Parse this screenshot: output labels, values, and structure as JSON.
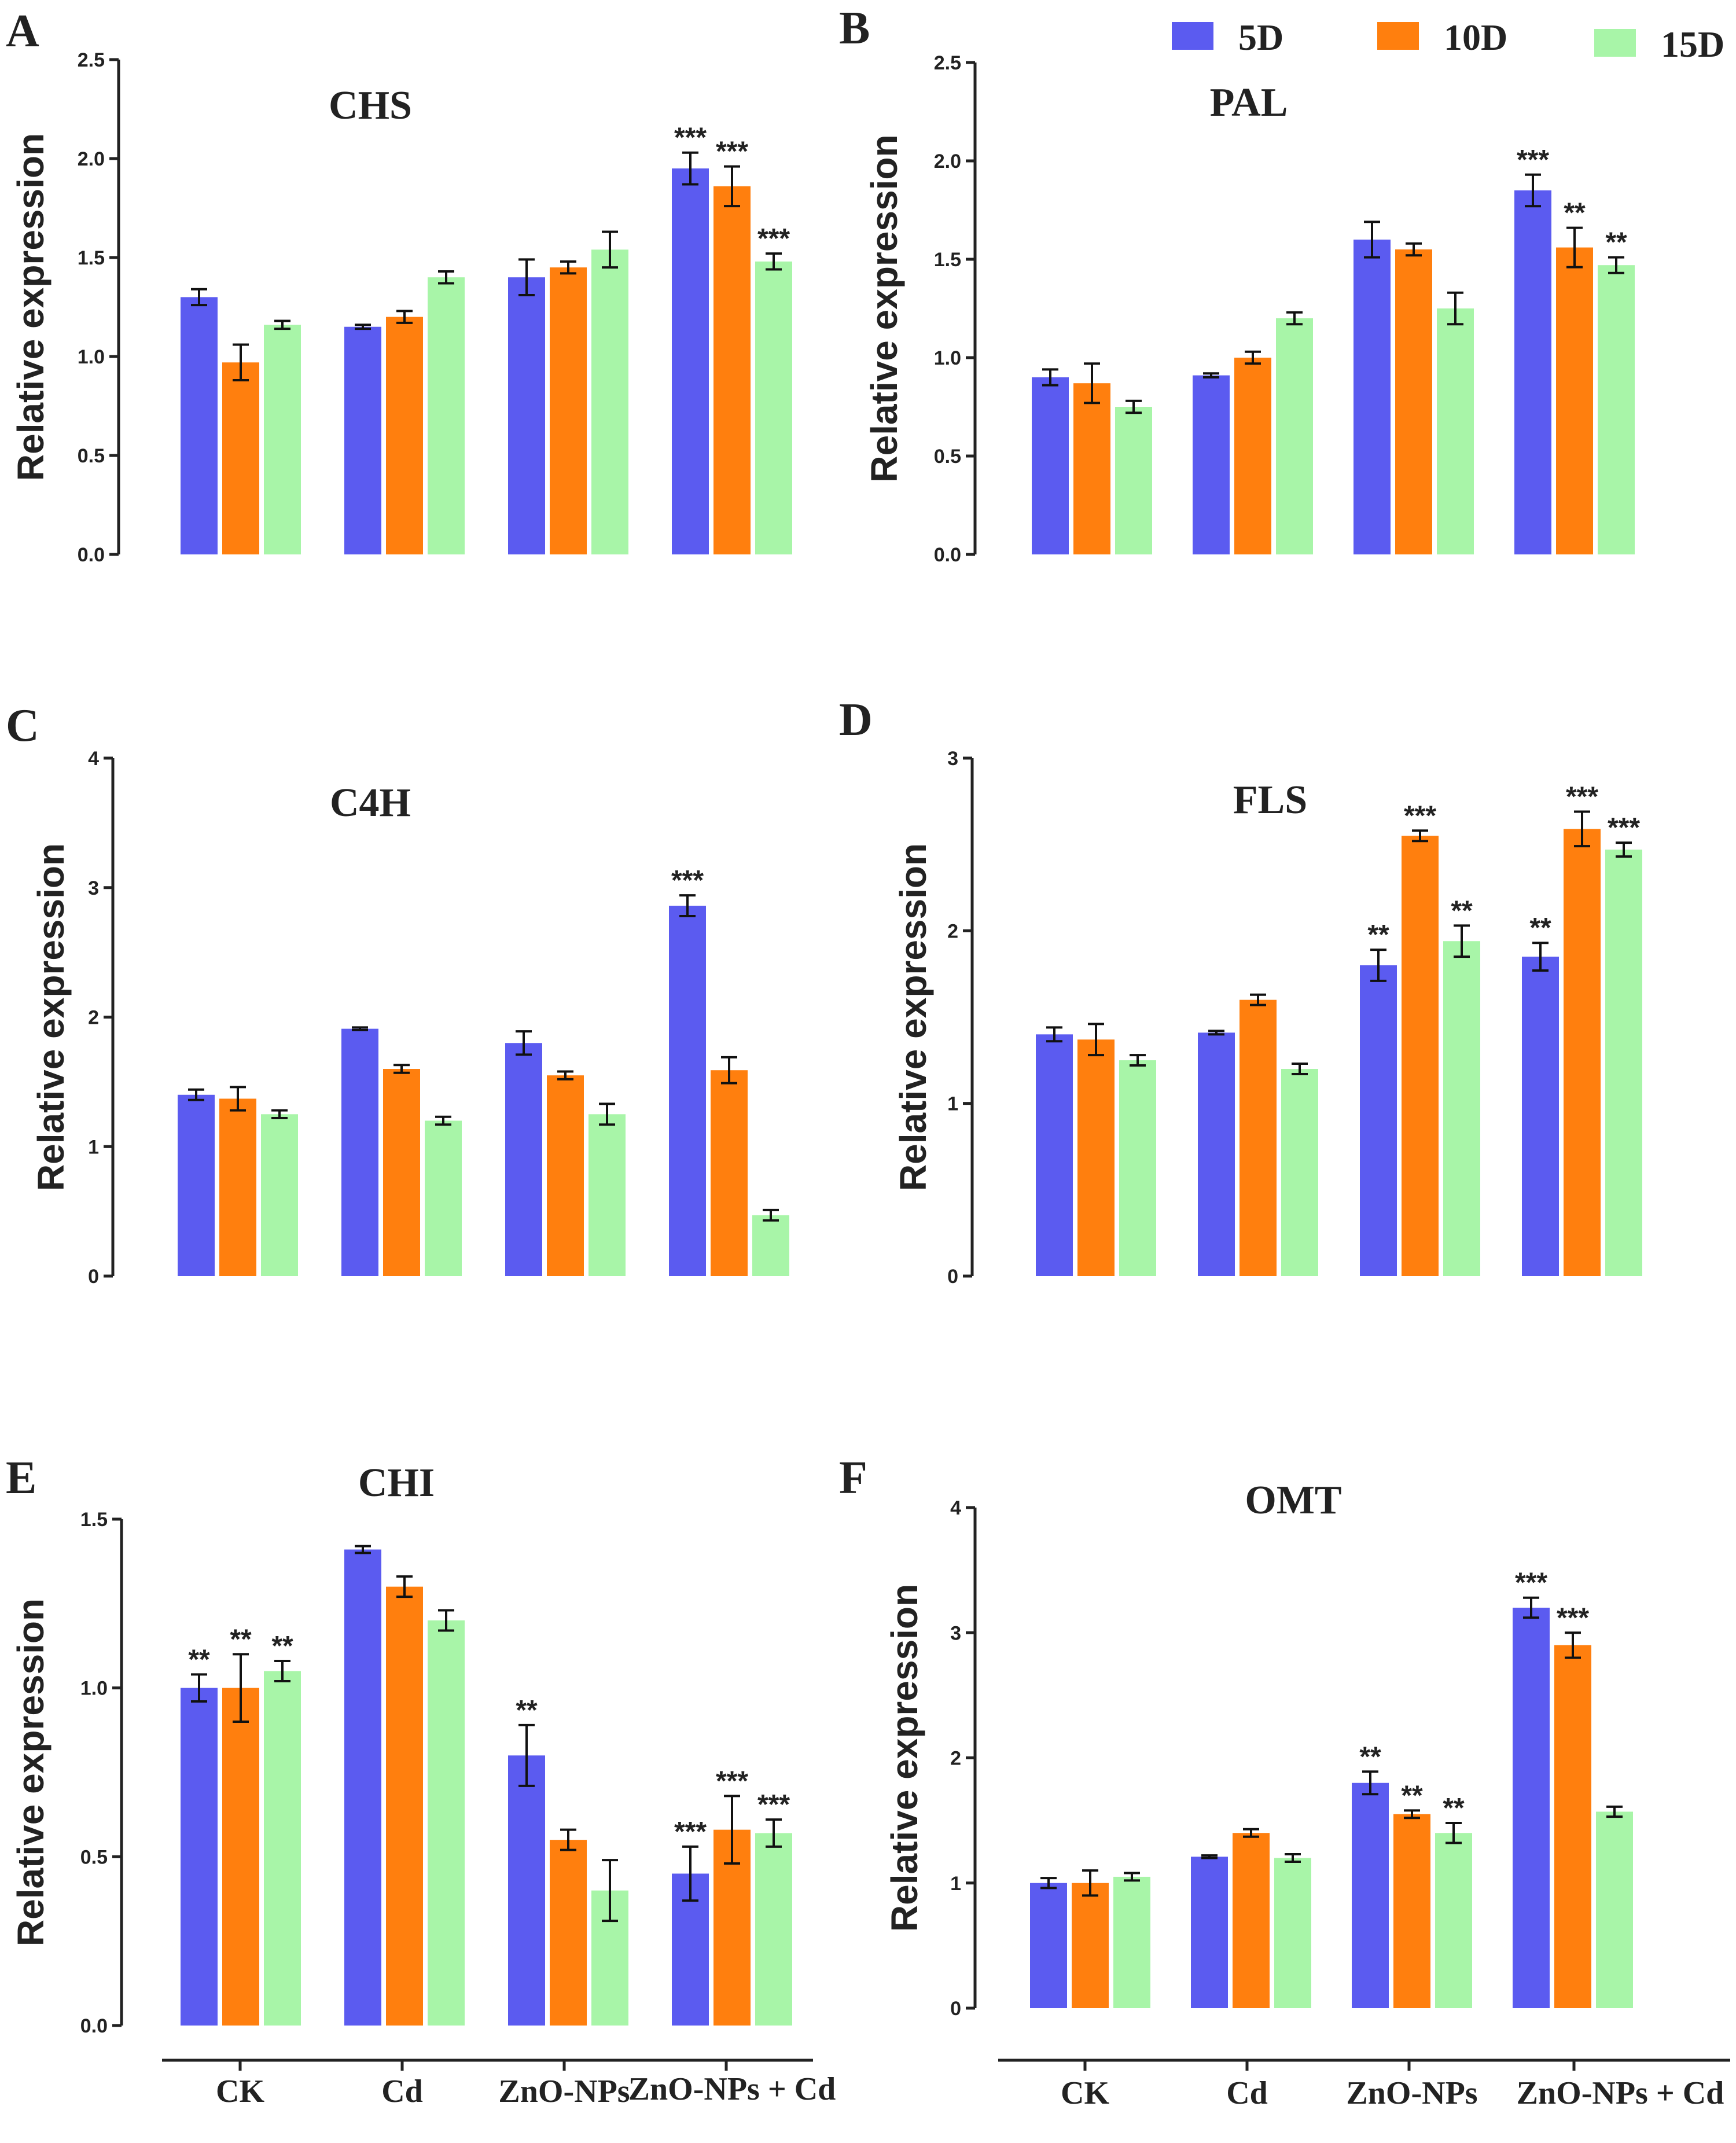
{
  "legend": [
    {
      "label": "5D",
      "color": "#5b5bf0"
    },
    {
      "label": "10D",
      "color": "#ff7f0e"
    },
    {
      "label": "15D",
      "color": "#a8f5a8"
    }
  ],
  "categories": [
    "CK",
    "Cd",
    "ZnO-NPs",
    "ZnO-NPs + Cd"
  ],
  "ylabel": "Relative expression",
  "chart_data": [
    {
      "type": "bar",
      "panel": "A",
      "title": "CHS",
      "ylabel": "Relative expression",
      "ylim": [
        0,
        2.5
      ],
      "yticks": [
        "0.0",
        "0.5",
        "1.0",
        "1.5",
        "2.0",
        "2.5"
      ],
      "categories": [
        "CK",
        "Cd",
        "ZnO-NPs",
        "ZnO-NPs + Cd"
      ],
      "series": [
        {
          "name": "5D",
          "values": [
            1.3,
            1.15,
            1.4,
            1.95
          ],
          "errors": [
            0.04,
            0.01,
            0.09,
            0.08
          ],
          "stars": [
            "",
            "",
            "",
            "***"
          ]
        },
        {
          "name": "10D",
          "values": [
            0.97,
            1.2,
            1.45,
            1.86
          ],
          "errors": [
            0.09,
            0.03,
            0.03,
            0.1
          ],
          "stars": [
            "",
            "",
            "",
            "***"
          ]
        },
        {
          "name": "15D",
          "values": [
            1.16,
            1.4,
            1.54,
            1.48
          ],
          "errors": [
            0.02,
            0.03,
            0.09,
            0.04
          ],
          "stars": [
            "",
            "",
            "",
            "***"
          ]
        }
      ]
    },
    {
      "type": "bar",
      "panel": "B",
      "title": "PAL",
      "ylabel": "Relative expression",
      "ylim": [
        0,
        2.5
      ],
      "yticks": [
        "0.0",
        "0.5",
        "1.0",
        "1.5",
        "2.0",
        "2.5"
      ],
      "categories": [
        "CK",
        "Cd",
        "ZnO-NPs",
        "ZnO-NPs + Cd"
      ],
      "series": [
        {
          "name": "5D",
          "values": [
            0.9,
            0.91,
            1.6,
            1.85
          ],
          "errors": [
            0.04,
            0.01,
            0.09,
            0.08
          ],
          "stars": [
            "",
            "",
            "",
            "***"
          ]
        },
        {
          "name": "10D",
          "values": [
            0.87,
            1.0,
            1.55,
            1.56
          ],
          "errors": [
            0.1,
            0.03,
            0.03,
            0.1
          ],
          "stars": [
            "",
            "",
            "",
            "**"
          ]
        },
        {
          "name": "15D",
          "values": [
            0.75,
            1.2,
            1.25,
            1.47
          ],
          "errors": [
            0.03,
            0.03,
            0.08,
            0.04
          ],
          "stars": [
            "",
            "",
            "",
            "**"
          ]
        }
      ]
    },
    {
      "type": "bar",
      "panel": "C",
      "title": "C4H",
      "ylabel": "Relative expression",
      "ylim": [
        0,
        4
      ],
      "yticks": [
        "0",
        "1",
        "2",
        "3",
        "4"
      ],
      "categories": [
        "CK",
        "Cd",
        "ZnO-NPs",
        "ZnO-NPs + Cd"
      ],
      "series": [
        {
          "name": "5D",
          "values": [
            1.4,
            1.91,
            1.8,
            2.86
          ],
          "errors": [
            0.04,
            0.01,
            0.09,
            0.08
          ],
          "stars": [
            "",
            "",
            "",
            "***"
          ]
        },
        {
          "name": "10D",
          "values": [
            1.37,
            1.6,
            1.55,
            1.59
          ],
          "errors": [
            0.09,
            0.03,
            0.03,
            0.1
          ],
          "stars": [
            "",
            "",
            "",
            ""
          ]
        },
        {
          "name": "15D",
          "values": [
            1.25,
            1.2,
            1.25,
            0.47
          ],
          "errors": [
            0.03,
            0.03,
            0.08,
            0.04
          ],
          "stars": [
            "",
            "",
            "",
            ""
          ]
        }
      ]
    },
    {
      "type": "bar",
      "panel": "D",
      "title": "FLS",
      "ylabel": "Relative expression",
      "ylim": [
        0,
        3
      ],
      "yticks": [
        "0",
        "1",
        "2",
        "3"
      ],
      "categories": [
        "CK",
        "Cd",
        "ZnO-NPs",
        "ZnO-NPs + Cd"
      ],
      "series": [
        {
          "name": "5D",
          "values": [
            1.4,
            1.41,
            1.8,
            1.85
          ],
          "errors": [
            0.04,
            0.01,
            0.09,
            0.08
          ],
          "stars": [
            "",
            "",
            "**",
            "**"
          ]
        },
        {
          "name": "10D",
          "values": [
            1.37,
            1.6,
            2.55,
            2.59
          ],
          "errors": [
            0.09,
            0.03,
            0.03,
            0.1
          ],
          "stars": [
            "",
            "",
            "***",
            "***"
          ]
        },
        {
          "name": "15D",
          "values": [
            1.25,
            1.2,
            1.94,
            2.47
          ],
          "errors": [
            0.03,
            0.03,
            0.09,
            0.04
          ],
          "stars": [
            "",
            "",
            "**",
            "***"
          ]
        }
      ]
    },
    {
      "type": "bar",
      "panel": "E",
      "title": "CHI",
      "ylabel": "Relative expression",
      "ylim": [
        0,
        1.5
      ],
      "yticks": [
        "0.0",
        "0.5",
        "1.0",
        "1.5"
      ],
      "categories": [
        "CK",
        "Cd",
        "ZnO-NPs",
        "ZnO-NPs + Cd"
      ],
      "series": [
        {
          "name": "5D",
          "values": [
            1.0,
            1.41,
            0.8,
            0.45
          ],
          "errors": [
            0.04,
            0.01,
            0.09,
            0.08
          ],
          "stars": [
            "**",
            "",
            "**",
            "***"
          ]
        },
        {
          "name": "10D",
          "values": [
            1.0,
            1.3,
            0.55,
            0.58
          ],
          "errors": [
            0.1,
            0.03,
            0.03,
            0.1
          ],
          "stars": [
            "**",
            "",
            "",
            "***"
          ]
        },
        {
          "name": "15D",
          "values": [
            1.05,
            1.2,
            0.4,
            0.57
          ],
          "errors": [
            0.03,
            0.03,
            0.09,
            0.04
          ],
          "stars": [
            "**",
            "",
            "",
            "***"
          ]
        }
      ]
    },
    {
      "type": "bar",
      "panel": "F",
      "title": "OMT",
      "ylabel": "Relative expression",
      "ylim": [
        0,
        4
      ],
      "yticks": [
        "0",
        "1",
        "2",
        "3",
        "4"
      ],
      "categories": [
        "CK",
        "Cd",
        "ZnO-NPs",
        "ZnO-NPs + Cd"
      ],
      "series": [
        {
          "name": "5D",
          "values": [
            1.0,
            1.21,
            1.8,
            3.2
          ],
          "errors": [
            0.04,
            0.01,
            0.09,
            0.08
          ],
          "stars": [
            "",
            "",
            "**",
            "***"
          ]
        },
        {
          "name": "10D",
          "values": [
            1.0,
            1.4,
            1.55,
            2.9
          ],
          "errors": [
            0.1,
            0.03,
            0.03,
            0.1
          ],
          "stars": [
            "",
            "",
            "**",
            "***"
          ]
        },
        {
          "name": "15D",
          "values": [
            1.05,
            1.2,
            1.4,
            1.57
          ],
          "errors": [
            0.03,
            0.03,
            0.08,
            0.04
          ],
          "stars": [
            "",
            "",
            "**",
            ""
          ]
        }
      ]
    }
  ]
}
